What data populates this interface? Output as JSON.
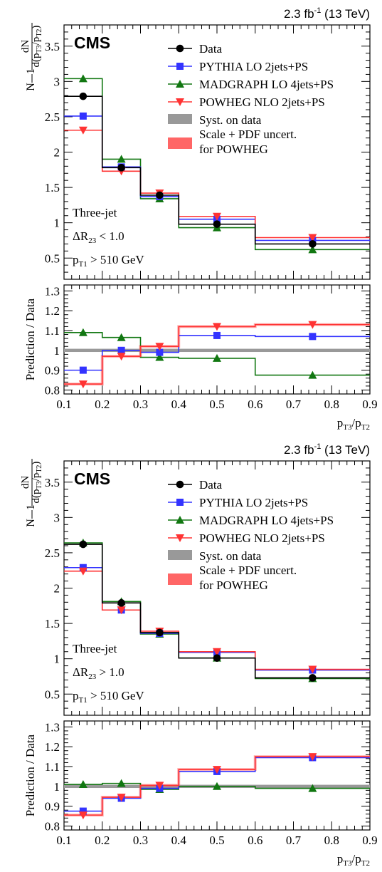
{
  "page": {
    "experiment": "CMS",
    "lumi_prefix": "2.3 fb",
    "lumi_exp": "-1",
    "energy": "(13 TeV)"
  },
  "legend": {
    "data": "Data",
    "pythia": "PYTHIA LO 2jets+PS",
    "madgraph": "MADGRAPH LO 4jets+PS",
    "powheg": "POWHEG NLO 2jets+PS",
    "syst": "Syst. on data",
    "scale_line1": "Scale + PDF uncert.",
    "scale_line2": "for POWHEG"
  },
  "colors": {
    "data": "#000000",
    "pythia": "#3333ff",
    "madgraph": "#117711",
    "powheg": "#ff3333",
    "syst": "#999999",
    "scale": "#ff6666"
  },
  "axis": {
    "x_label_main": "p",
    "x_label_sub1": "T3",
    "x_label_sep": "/p",
    "x_label_sub2": "T2",
    "ratio_ylabel": "Prediction / Data"
  },
  "chart_data": [
    {
      "type": "line",
      "panel": "top",
      "selection": {
        "line1": "Three-jet",
        "dr_text": "ΔR",
        "dr_sub": "23",
        "dr_cut": " < 1.0",
        "pt_text": "p",
        "pt_sub": "T1",
        "pt_cut": " > 510 GeV"
      },
      "bin_edges": [
        0.1,
        0.2,
        0.3,
        0.4,
        0.6,
        0.9
      ],
      "bin_centers": [
        0.15,
        0.25,
        0.35,
        0.5,
        0.75
      ],
      "xlim": [
        0.1,
        0.9
      ],
      "ylim_main": [
        0.2,
        3.8
      ],
      "yticks_main": [
        0.5,
        1,
        1.5,
        2,
        2.5,
        3,
        3.5
      ],
      "ylim_ratio": [
        0.78,
        1.33
      ],
      "yticks_ratio": [
        0.8,
        0.9,
        1,
        1.1,
        1.2,
        1.3
      ],
      "xticks": [
        0.1,
        0.2,
        0.3,
        0.4,
        0.5,
        0.6,
        0.7,
        0.8,
        0.9
      ],
      "series": [
        {
          "name": "Data",
          "values": [
            2.79,
            1.78,
            1.39,
            0.98,
            0.7
          ]
        },
        {
          "name": "PYTHIA LO 2jets+PS",
          "values": [
            2.51,
            1.79,
            1.37,
            1.05,
            0.75
          ]
        },
        {
          "name": "MADGRAPH LO 4jets+PS",
          "values": [
            3.04,
            1.9,
            1.34,
            0.93,
            0.62
          ]
        },
        {
          "name": "POWHEG NLO 2jets+PS",
          "values": [
            2.31,
            1.73,
            1.42,
            1.09,
            0.79
          ]
        }
      ],
      "ratio": [
        {
          "name": "PYTHIA LO 2jets+PS",
          "values": [
            0.9,
            1.0,
            0.99,
            1.075,
            1.07
          ]
        },
        {
          "name": "MADGRAPH LO 4jets+PS",
          "values": [
            1.09,
            1.065,
            0.965,
            0.96,
            0.875
          ]
        },
        {
          "name": "POWHEG NLO 2jets+PS",
          "values": [
            0.83,
            0.97,
            1.02,
            1.12,
            1.13
          ]
        }
      ]
    },
    {
      "type": "line",
      "panel": "bottom",
      "selection": {
        "line1": "Three-jet",
        "dr_text": "ΔR",
        "dr_sub": "23",
        "dr_cut": " > 1.0",
        "pt_text": "p",
        "pt_sub": "T1",
        "pt_cut": " > 510 GeV"
      },
      "bin_edges": [
        0.1,
        0.2,
        0.3,
        0.4,
        0.6,
        0.9
      ],
      "bin_centers": [
        0.15,
        0.25,
        0.35,
        0.5,
        0.75
      ],
      "xlim": [
        0.1,
        0.9
      ],
      "ylim_main": [
        0.2,
        3.8
      ],
      "yticks_main": [
        0.5,
        1,
        1.5,
        2,
        2.5,
        3,
        3.5
      ],
      "ylim_ratio": [
        0.78,
        1.33
      ],
      "yticks_ratio": [
        0.8,
        0.9,
        1,
        1.1,
        1.2,
        1.3
      ],
      "xticks": [
        0.1,
        0.2,
        0.3,
        0.4,
        0.5,
        0.6,
        0.7,
        0.8,
        0.9
      ],
      "series": [
        {
          "name": "Data",
          "values": [
            2.62,
            1.79,
            1.37,
            1.01,
            0.73
          ]
        },
        {
          "name": "PYTHIA LO 2jets+PS",
          "values": [
            2.29,
            1.69,
            1.36,
            1.09,
            0.84
          ]
        },
        {
          "name": "MADGRAPH LO 4jets+PS",
          "values": [
            2.64,
            1.81,
            1.35,
            1.01,
            0.72
          ]
        },
        {
          "name": "POWHEG NLO 2jets+PS",
          "values": [
            2.24,
            1.69,
            1.39,
            1.1,
            0.85
          ]
        }
      ],
      "ratio": [
        {
          "name": "PYTHIA LO 2jets+PS",
          "values": [
            0.875,
            0.94,
            0.99,
            1.075,
            1.145
          ]
        },
        {
          "name": "MADGRAPH LO 4jets+PS",
          "values": [
            1.01,
            1.015,
            0.985,
            1.0,
            0.99
          ]
        },
        {
          "name": "POWHEG NLO 2jets+PS",
          "values": [
            0.855,
            0.945,
            1.005,
            1.085,
            1.15
          ]
        }
      ]
    }
  ]
}
